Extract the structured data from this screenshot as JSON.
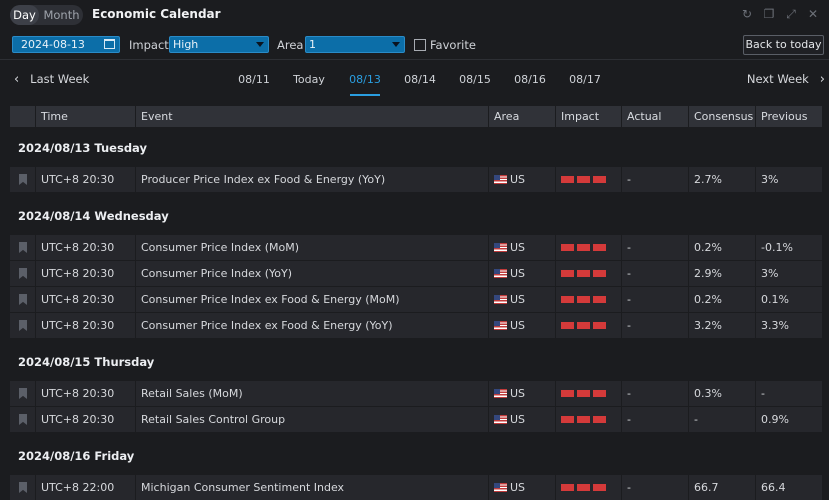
{
  "header": {
    "modes": [
      "Day",
      "Month"
    ],
    "active_mode": "Day",
    "title": "Economic Calendar",
    "window_icons": [
      "refresh-icon",
      "restore-icon",
      "expand-icon",
      "close-icon"
    ]
  },
  "filters": {
    "date": "2024-08-13",
    "impact_label": "Impact",
    "impact_value": "High",
    "area_label": "Area",
    "area_value": "1",
    "favorite_label": "Favorite",
    "back_to_today": "Back to today"
  },
  "week_nav": {
    "prev": "Last Week",
    "next": "Next Week",
    "days": [
      "08/11",
      "Today",
      "08/13",
      "08/14",
      "08/15",
      "08/16",
      "08/17"
    ],
    "active_day": "08/13"
  },
  "table": {
    "columns": [
      "Time",
      "Event",
      "Area",
      "Impact",
      "Actual",
      "Consensus",
      "Previous"
    ],
    "groups": [
      {
        "date": "2024/08/13 Tuesday",
        "rows": [
          {
            "time": "UTC+8 20:30",
            "event": "Producer Price Index ex Food & Energy (YoY)",
            "area": "US",
            "actual": "-",
            "consensus": "2.7%",
            "previous": "3%"
          }
        ]
      },
      {
        "date": "2024/08/14 Wednesday",
        "rows": [
          {
            "time": "UTC+8 20:30",
            "event": "Consumer Price Index (MoM)",
            "area": "US",
            "actual": "-",
            "consensus": "0.2%",
            "previous": "-0.1%"
          },
          {
            "time": "UTC+8 20:30",
            "event": "Consumer Price Index (YoY)",
            "area": "US",
            "actual": "-",
            "consensus": "2.9%",
            "previous": "3%"
          },
          {
            "time": "UTC+8 20:30",
            "event": "Consumer Price Index ex Food & Energy (MoM)",
            "area": "US",
            "actual": "-",
            "consensus": "0.2%",
            "previous": "0.1%"
          },
          {
            "time": "UTC+8 20:30",
            "event": "Consumer Price Index ex Food & Energy (YoY)",
            "area": "US",
            "actual": "-",
            "consensus": "3.2%",
            "previous": "3.3%"
          }
        ]
      },
      {
        "date": "2024/08/15 Thursday",
        "rows": [
          {
            "time": "UTC+8 20:30",
            "event": "Retail Sales (MoM)",
            "area": "US",
            "actual": "-",
            "consensus": "0.3%",
            "previous": "-"
          },
          {
            "time": "UTC+8 20:30",
            "event": "Retail Sales Control Group",
            "area": "US",
            "actual": "-",
            "consensus": "-",
            "previous": "0.9%"
          }
        ]
      },
      {
        "date": "2024/08/16 Friday",
        "rows": [
          {
            "time": "UTC+8 22:00",
            "event": "Michigan Consumer Sentiment Index",
            "area": "US",
            "actual": "-",
            "consensus": "66.7",
            "previous": "66.4"
          }
        ]
      }
    ]
  },
  "colors": {
    "accent": "#2a9ee0",
    "impact_high": "#d43a3a",
    "field_bg": "#0c6ea8"
  }
}
